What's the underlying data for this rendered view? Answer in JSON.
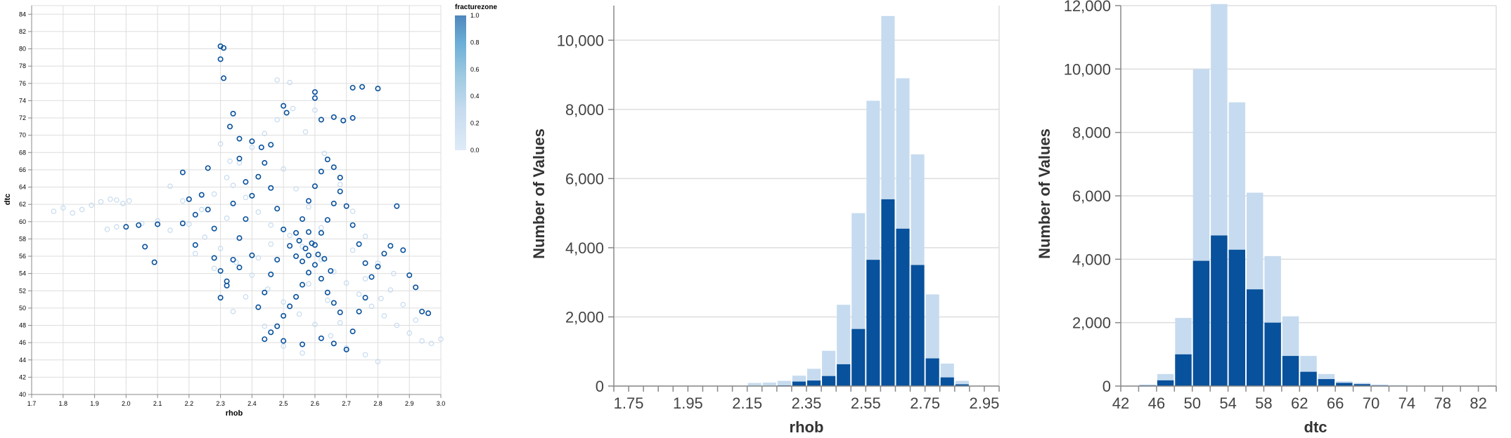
{
  "colors": {
    "dark": "#08519c",
    "light": "#c6dbef",
    "grid": "#dddddd",
    "axis": "#888888",
    "legend_gradient": [
      "#deebf7",
      "#c6dbef",
      "#9ecae1",
      "#6baed6",
      "#4f87bd"
    ]
  },
  "chart_data": [
    {
      "type": "scatter",
      "xlabel": "rhob",
      "ylabel": "dtc",
      "xlim": [
        1.7,
        3.0
      ],
      "ylim": [
        40,
        85
      ],
      "x_ticks": [
        "1.7",
        "1.8",
        "1.9",
        "2.0",
        "2.1",
        "2.2",
        "2.3",
        "2.4",
        "2.5",
        "2.6",
        "2.7",
        "2.8",
        "2.9",
        "3.0"
      ],
      "y_ticks": [
        "40",
        "42",
        "44",
        "46",
        "48",
        "50",
        "52",
        "54",
        "56",
        "58",
        "60",
        "62",
        "64",
        "66",
        "68",
        "70",
        "72",
        "74",
        "76",
        "78",
        "80",
        "82",
        "84"
      ],
      "grid": true,
      "legend": {
        "title": "fracturezone",
        "placement": "right",
        "ticks": [
          "1.0",
          "0.8",
          "0.6",
          "0.4",
          "0.2",
          "0.0"
        ]
      },
      "mark": "open-circle",
      "series": [
        {
          "fracturezone": 0.0,
          "points": [
            [
              1.77,
              61.2
            ],
            [
              1.8,
              61.6
            ],
            [
              1.83,
              61.0
            ],
            [
              1.86,
              61.4
            ],
            [
              1.89,
              61.9
            ],
            [
              1.92,
              62.3
            ],
            [
              1.95,
              62.6
            ],
            [
              1.97,
              62.5
            ],
            [
              1.99,
              62.1
            ],
            [
              2.01,
              62.4
            ],
            [
              1.94,
              59.1
            ],
            [
              1.97,
              59.4
            ],
            [
              2.05,
              59.8
            ],
            [
              2.1,
              60.1
            ],
            [
              2.14,
              59.0
            ],
            [
              2.3,
              69.0
            ],
            [
              2.33,
              67.0
            ],
            [
              2.48,
              76.4
            ],
            [
              2.52,
              76.1
            ],
            [
              2.6,
              72.9
            ],
            [
              2.34,
              64.2
            ],
            [
              2.38,
              62.8
            ],
            [
              2.42,
              61.1
            ],
            [
              2.46,
              59.6
            ],
            [
              2.52,
              58.4
            ],
            [
              2.56,
              57.1
            ],
            [
              2.62,
              55.6
            ],
            [
              2.66,
              54.2
            ],
            [
              2.7,
              52.9
            ],
            [
              2.74,
              51.6
            ],
            [
              2.78,
              50.2
            ],
            [
              2.82,
              49.1
            ],
            [
              2.86,
              48.0
            ],
            [
              2.9,
              47.1
            ],
            [
              2.94,
              46.2
            ],
            [
              2.97,
              45.9
            ],
            [
              3.0,
              46.4
            ],
            [
              2.76,
              44.6
            ],
            [
              2.8,
              43.8
            ],
            [
              2.7,
              45.4
            ],
            [
              2.65,
              46.8
            ],
            [
              2.6,
              48.1
            ],
            [
              2.55,
              49.3
            ],
            [
              2.5,
              50.7
            ],
            [
              2.45,
              52.2
            ],
            [
              2.4,
              53.8
            ],
            [
              2.35,
              55.3
            ],
            [
              2.3,
              56.9
            ],
            [
              2.25,
              58.2
            ],
            [
              2.2,
              59.7
            ],
            [
              2.24,
              61.4
            ],
            [
              2.28,
              63.2
            ],
            [
              2.32,
              65.1
            ],
            [
              2.36,
              66.8
            ],
            [
              2.4,
              68.6
            ],
            [
              2.44,
              70.2
            ],
            [
              2.48,
              71.8
            ],
            [
              2.53,
              73.1
            ],
            [
              2.57,
              70.4
            ],
            [
              2.63,
              67.9
            ],
            [
              2.68,
              64.3
            ],
            [
              2.72,
              61.2
            ],
            [
              2.76,
              58.3
            ],
            [
              2.8,
              55.2
            ],
            [
              2.84,
              52.1
            ],
            [
              2.88,
              50.4
            ],
            [
              2.92,
              48.6
            ],
            [
              2.62,
              59.3
            ],
            [
              2.58,
              61.7
            ],
            [
              2.54,
              63.8
            ],
            [
              2.5,
              66.1
            ],
            [
              2.46,
              57.4
            ],
            [
              2.42,
              55.8
            ],
            [
              2.38,
              51.3
            ],
            [
              2.34,
              49.6
            ],
            [
              2.58,
              52.8
            ],
            [
              2.64,
              50.9
            ],
            [
              2.68,
              48.3
            ],
            [
              2.72,
              56.7
            ],
            [
              2.76,
              53.4
            ],
            [
              2.81,
              51.1
            ],
            [
              2.85,
              54.0
            ],
            [
              2.32,
              60.4
            ],
            [
              2.28,
              54.6
            ],
            [
              2.22,
              56.3
            ],
            [
              2.18,
              62.4
            ],
            [
              2.14,
              64.1
            ],
            [
              2.44,
              47.9
            ],
            [
              2.5,
              45.6
            ],
            [
              2.56,
              44.8
            ]
          ]
        },
        {
          "fracturezone": 1.0,
          "points": [
            [
              2.3,
              80.3
            ],
            [
              2.31,
              80.1
            ],
            [
              2.3,
              78.8
            ],
            [
              2.31,
              76.6
            ],
            [
              2.34,
              72.5
            ],
            [
              2.33,
              71.0
            ],
            [
              2.36,
              69.6
            ],
            [
              2.4,
              69.3
            ],
            [
              2.43,
              68.6
            ],
            [
              2.46,
              68.9
            ],
            [
              2.5,
              73.4
            ],
            [
              2.51,
              72.6
            ],
            [
              2.6,
              75.0
            ],
            [
              2.6,
              74.3
            ],
            [
              2.72,
              75.5
            ],
            [
              2.75,
              75.6
            ],
            [
              2.8,
              75.4
            ],
            [
              2.62,
              71.8
            ],
            [
              2.66,
              72.1
            ],
            [
              2.69,
              71.7
            ],
            [
              2.72,
              72.0
            ],
            [
              2.0,
              59.4
            ],
            [
              2.04,
              59.6
            ],
            [
              2.1,
              59.7
            ],
            [
              2.06,
              57.1
            ],
            [
              2.09,
              55.3
            ],
            [
              2.18,
              59.8
            ],
            [
              2.22,
              57.3
            ],
            [
              2.2,
              62.6
            ],
            [
              2.24,
              63.1
            ],
            [
              2.18,
              65.7
            ],
            [
              2.26,
              61.4
            ],
            [
              2.28,
              59.2
            ],
            [
              2.28,
              55.8
            ],
            [
              2.3,
              54.3
            ],
            [
              2.32,
              53.1
            ],
            [
              2.34,
              55.6
            ],
            [
              2.36,
              58.1
            ],
            [
              2.38,
              60.3
            ],
            [
              2.4,
              63.0
            ],
            [
              2.42,
              65.2
            ],
            [
              2.44,
              66.8
            ],
            [
              2.46,
              63.9
            ],
            [
              2.48,
              61.5
            ],
            [
              2.5,
              59.1
            ],
            [
              2.52,
              57.2
            ],
            [
              2.54,
              56.0
            ],
            [
              2.56,
              55.4
            ],
            [
              2.58,
              56.1
            ],
            [
              2.6,
              57.3
            ],
            [
              2.62,
              58.7
            ],
            [
              2.64,
              60.2
            ],
            [
              2.66,
              62.1
            ],
            [
              2.68,
              63.5
            ],
            [
              2.7,
              61.8
            ],
            [
              2.72,
              59.6
            ],
            [
              2.74,
              57.4
            ],
            [
              2.76,
              55.2
            ],
            [
              2.78,
              53.6
            ],
            [
              2.8,
              54.8
            ],
            [
              2.82,
              56.3
            ],
            [
              2.84,
              57.2
            ],
            [
              2.86,
              61.8
            ],
            [
              2.88,
              56.7
            ],
            [
              2.9,
              53.8
            ],
            [
              2.92,
              52.4
            ],
            [
              2.94,
              49.6
            ],
            [
              2.96,
              49.4
            ],
            [
              2.58,
              54.1
            ],
            [
              2.56,
              52.7
            ],
            [
              2.54,
              51.3
            ],
            [
              2.52,
              50.2
            ],
            [
              2.5,
              49.1
            ],
            [
              2.48,
              47.9
            ],
            [
              2.46,
              47.2
            ],
            [
              2.44,
              46.4
            ],
            [
              2.5,
              46.2
            ],
            [
              2.56,
              45.8
            ],
            [
              2.62,
              46.5
            ],
            [
              2.66,
              45.9
            ],
            [
              2.7,
              45.2
            ],
            [
              2.72,
              47.3
            ],
            [
              2.74,
              49.6
            ],
            [
              2.76,
              51.2
            ],
            [
              2.62,
              53.4
            ],
            [
              2.64,
              51.8
            ],
            [
              2.66,
              50.6
            ],
            [
              2.68,
              49.5
            ],
            [
              2.4,
              56.1
            ],
            [
              2.36,
              54.7
            ],
            [
              2.32,
              52.6
            ],
            [
              2.3,
              51.2
            ],
            [
              2.42,
              50.1
            ],
            [
              2.44,
              51.8
            ],
            [
              2.46,
              53.9
            ],
            [
              2.48,
              55.6
            ],
            [
              2.54,
              58.7
            ],
            [
              2.56,
              60.3
            ],
            [
              2.58,
              62.4
            ],
            [
              2.6,
              64.1
            ],
            [
              2.62,
              65.8
            ],
            [
              2.64,
              67.2
            ],
            [
              2.66,
              66.3
            ],
            [
              2.68,
              65.1
            ],
            [
              2.58,
              58.8
            ],
            [
              2.59,
              57.5
            ],
            [
              2.61,
              56.2
            ],
            [
              2.6,
              55.0
            ],
            [
              2.57,
              56.9
            ],
            [
              2.63,
              55.7
            ],
            [
              2.55,
              57.8
            ],
            [
              2.65,
              54.3
            ],
            [
              2.38,
              64.6
            ],
            [
              2.36,
              67.3
            ],
            [
              2.34,
              62.1
            ],
            [
              2.26,
              66.2
            ],
            [
              2.22,
              60.8
            ]
          ]
        }
      ]
    },
    {
      "type": "bar",
      "stacked": true,
      "xlabel": "rhob",
      "ylabel": "Number of Values",
      "ylim": [
        0,
        11000
      ],
      "x_ticks": [
        "1.75",
        "1.95",
        "2.15",
        "2.35",
        "2.55",
        "2.75",
        "2.95"
      ],
      "y_ticks": [
        "0",
        "2,000",
        "4,000",
        "6,000",
        "8,000",
        "10,000"
      ],
      "bin_starts": [
        1.7,
        1.75,
        1.8,
        1.85,
        1.9,
        1.95,
        2.0,
        2.05,
        2.1,
        2.15,
        2.2,
        2.25,
        2.3,
        2.35,
        2.4,
        2.45,
        2.5,
        2.55,
        2.6,
        2.65,
        2.7,
        2.75,
        2.8,
        2.85,
        2.9,
        2.95
      ],
      "bin_width": 0.05,
      "series": [
        {
          "color_key": "dark",
          "values": [
            0,
            0,
            0,
            0,
            0,
            0,
            0,
            0,
            0,
            0,
            10,
            20,
            130,
            160,
            290,
            630,
            1650,
            3650,
            5400,
            4550,
            3500,
            800,
            250,
            50,
            0,
            0
          ]
        },
        {
          "color_key": "light",
          "values": [
            0,
            0,
            0,
            0,
            0,
            0,
            0,
            0,
            0,
            0,
            0,
            0,
            0,
            0,
            0,
            0,
            0,
            0,
            0,
            0,
            0,
            0,
            0,
            0,
            0,
            0
          ],
          "totals": [
            0,
            0,
            0,
            0,
            0,
            0,
            0,
            0,
            10,
            90,
            100,
            150,
            300,
            500,
            1020,
            2350,
            5000,
            8250,
            10700,
            8900,
            6700,
            2650,
            650,
            150,
            10,
            0
          ]
        }
      ]
    },
    {
      "type": "bar",
      "stacked": true,
      "xlabel": "dtc",
      "ylabel": "Number of Values",
      "ylim": [
        0,
        12000
      ],
      "x_ticks": [
        "42",
        "46",
        "50",
        "54",
        "58",
        "62",
        "66",
        "70",
        "74",
        "78",
        "82"
      ],
      "y_ticks": [
        "0",
        "2,000",
        "4,000",
        "6,000",
        "8,000",
        "10,000",
        "12,000"
      ],
      "bin_starts": [
        42,
        44,
        46,
        48,
        50,
        52,
        54,
        56,
        58,
        60,
        62,
        64,
        66,
        68,
        70,
        72,
        74,
        76,
        78,
        80,
        82
      ],
      "bin_width": 2,
      "series": [
        {
          "color_key": "dark",
          "values": [
            0,
            20,
            180,
            1000,
            3950,
            4750,
            4300,
            3050,
            2000,
            950,
            450,
            220,
            100,
            60,
            20,
            10,
            0,
            0,
            0,
            0,
            0
          ]
        },
        {
          "color_key": "light",
          "values": [
            0,
            0,
            0,
            0,
            0,
            0,
            0,
            0,
            0,
            0,
            0,
            0,
            0,
            0,
            0,
            0,
            0,
            0,
            0,
            0,
            0
          ],
          "totals": [
            0,
            50,
            380,
            2150,
            10000,
            12050,
            8950,
            6100,
            4100,
            2200,
            950,
            380,
            150,
            100,
            50,
            30,
            10,
            0,
            0,
            0,
            0
          ]
        }
      ]
    }
  ]
}
